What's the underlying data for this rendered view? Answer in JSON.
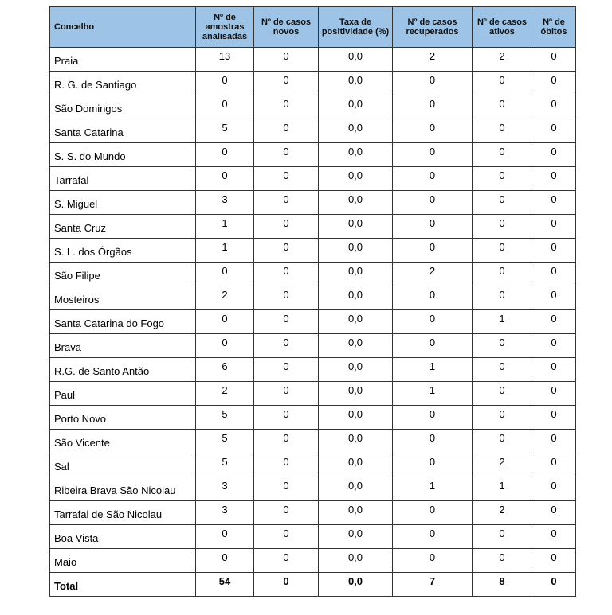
{
  "headers": [
    "Concelho",
    "Nº de amostras analisadas",
    "Nº de casos novos",
    "Taxa de positividade (%)",
    "Nº de casos recuperados",
    "Nº de casos ativos",
    "Nº de óbitos"
  ],
  "rows": [
    [
      "Praia",
      "13",
      "0",
      "0,0",
      "2",
      "2",
      "0"
    ],
    [
      "R. G. de Santiago",
      "0",
      "0",
      "0,0",
      "0",
      "0",
      "0"
    ],
    [
      "São Domingos",
      "0",
      "0",
      "0,0",
      "0",
      "0",
      "0"
    ],
    [
      "Santa Catarina",
      "5",
      "0",
      "0,0",
      "0",
      "0",
      "0"
    ],
    [
      "S. S. do Mundo",
      "0",
      "0",
      "0,0",
      "0",
      "0",
      "0"
    ],
    [
      "Tarrafal",
      "0",
      "0",
      "0,0",
      "0",
      "0",
      "0"
    ],
    [
      "S. Miguel",
      "3",
      "0",
      "0,0",
      "0",
      "0",
      "0"
    ],
    [
      "Santa Cruz",
      "1",
      "0",
      "0,0",
      "0",
      "0",
      "0"
    ],
    [
      "S. L. dos Órgãos",
      "1",
      "0",
      "0,0",
      "0",
      "0",
      "0"
    ],
    [
      "São Filipe",
      "0",
      "0",
      "0,0",
      "2",
      "0",
      "0"
    ],
    [
      "Mosteiros",
      "2",
      "0",
      "0,0",
      "0",
      "0",
      "0"
    ],
    [
      "Santa Catarina do Fogo",
      "0",
      "0",
      "0,0",
      "0",
      "1",
      "0"
    ],
    [
      "Brava",
      "0",
      "0",
      "0,0",
      "0",
      "0",
      "0"
    ],
    [
      "R.G. de Santo Antão",
      "6",
      "0",
      "0,0",
      "1",
      "0",
      "0"
    ],
    [
      "Paul",
      "2",
      "0",
      "0,0",
      "1",
      "0",
      "0"
    ],
    [
      "Porto Novo",
      "5",
      "0",
      "0,0",
      "0",
      "0",
      "0"
    ],
    [
      "São Vicente",
      "5",
      "0",
      "0,0",
      "0",
      "0",
      "0"
    ],
    [
      "Sal",
      "5",
      "0",
      "0,0",
      "0",
      "2",
      "0"
    ],
    [
      "Ribeira Brava São Nicolau",
      "3",
      "0",
      "0,0",
      "1",
      "1",
      "0"
    ],
    [
      "Tarrafal de São Nicolau",
      "3",
      "0",
      "0,0",
      "0",
      "2",
      "0"
    ],
    [
      "Boa Vista",
      "0",
      "0",
      "0,0",
      "0",
      "0",
      "0"
    ],
    [
      "Maio",
      "0",
      "0",
      "0,0",
      "0",
      "0",
      "0"
    ]
  ],
  "total": [
    "Total",
    "54",
    "0",
    "0,0",
    "7",
    "8",
    "0"
  ],
  "colors": {
    "header_bg": "#9dc3e6"
  }
}
